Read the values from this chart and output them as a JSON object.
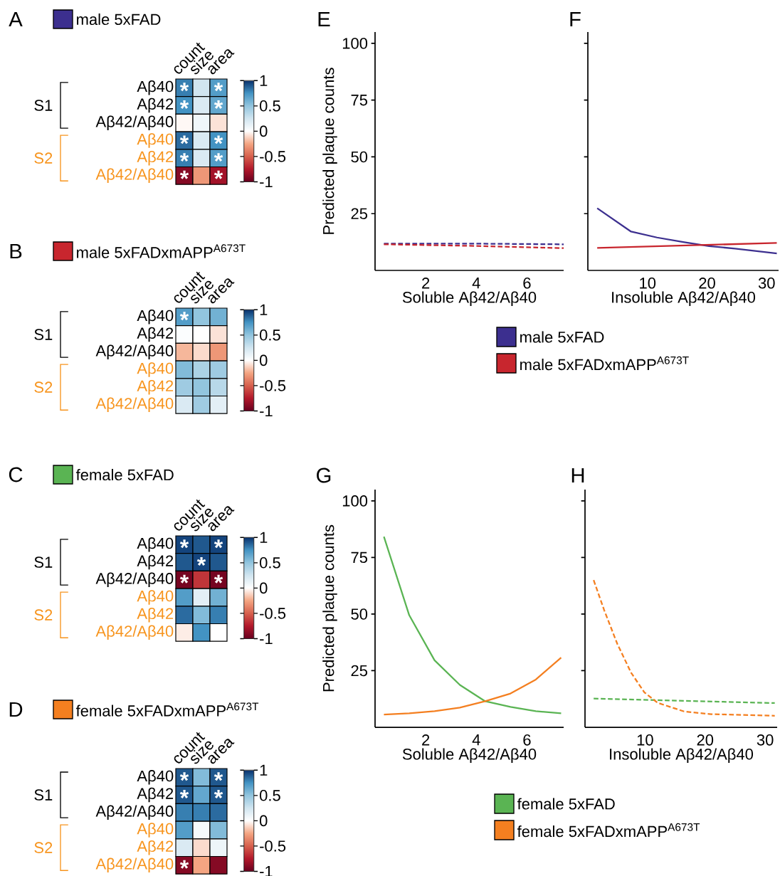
{
  "chart_data": [
    {
      "type": "heatmap",
      "title": "A",
      "subtitle": "male 5xFAD",
      "categories": [
        "count",
        "size",
        "area"
      ],
      "y_categories": [
        "Aβ40",
        "Aβ42",
        "Aβ42/Aβ40",
        "Aβ40",
        "Aβ42",
        "Aβ42/Aβ40"
      ],
      "cells": [
        [
          0.8,
          0.25,
          0.7
        ],
        [
          0.75,
          0.2,
          0.65
        ],
        [
          -0.02,
          0.08,
          -0.08
        ],
        [
          0.85,
          0.2,
          0.75
        ],
        [
          0.8,
          0.2,
          0.7
        ],
        [
          -0.9,
          -0.3,
          -0.8
        ]
      ],
      "cell_labels": [
        [
          "*",
          null,
          "*"
        ],
        [
          "*",
          null,
          "*"
        ],
        [
          null,
          null,
          null
        ],
        [
          "*",
          null,
          "*"
        ],
        [
          "*",
          null,
          "*"
        ],
        [
          "*",
          null,
          "*"
        ]
      ],
      "clim": [
        -1,
        1
      ],
      "cticks": [
        -1,
        -0.5,
        0,
        0.5,
        1
      ],
      "annotations": [
        "S1",
        "S2"
      ]
    },
    {
      "type": "heatmap",
      "title": "B",
      "subtitle": "male 5xFADxmAPP$^{A673T}$",
      "categories": [
        "count",
        "size",
        "area"
      ],
      "y_categories": [
        "Aβ40",
        "Aβ42",
        "Aβ42/Aβ40",
        "Aβ40",
        "Aβ42",
        "Aβ42/Aβ40"
      ],
      "cells": [
        [
          0.7,
          0.5,
          0.6
        ],
        [
          0.02,
          0.0,
          -0.08
        ],
        [
          -0.2,
          -0.1,
          -0.3
        ],
        [
          0.55,
          0.4,
          0.45
        ],
        [
          0.45,
          0.5,
          0.35
        ],
        [
          0.2,
          0.45,
          0.15
        ]
      ],
      "cell_labels": [
        [
          "*",
          null,
          null
        ],
        [
          null,
          null,
          null
        ],
        [
          null,
          null,
          null
        ],
        [
          null,
          null,
          null
        ],
        [
          null,
          null,
          null
        ],
        [
          null,
          null,
          null
        ]
      ],
      "clim": [
        -1,
        1
      ],
      "cticks": [
        -1,
        -0.5,
        0,
        0.5,
        1
      ],
      "annotations": [
        "S1",
        "S2"
      ]
    },
    {
      "type": "heatmap",
      "title": "C",
      "subtitle": "female 5xFAD",
      "categories": [
        "count",
        "size",
        "area"
      ],
      "y_categories": [
        "Aβ40",
        "Aβ42",
        "Aβ42/Aβ40",
        "Aβ40",
        "Aβ42",
        "Aβ42/Aβ40"
      ],
      "cells": [
        [
          0.95,
          0.9,
          0.95
        ],
        [
          0.9,
          0.95,
          0.9
        ],
        [
          -0.95,
          -0.65,
          -0.95
        ],
        [
          0.7,
          0.15,
          0.6
        ],
        [
          0.85,
          0.55,
          0.8
        ],
        [
          -0.05,
          0.75,
          0.0
        ]
      ],
      "cell_labels": [
        [
          "*",
          null,
          "*"
        ],
        [
          null,
          "*",
          null
        ],
        [
          "*",
          null,
          "*"
        ],
        [
          null,
          null,
          null
        ],
        [
          null,
          null,
          null
        ],
        [
          null,
          null,
          null
        ]
      ],
      "clim": [
        -1,
        1
      ],
      "cticks": [
        -1,
        -0.5,
        0,
        0.5,
        1
      ],
      "annotations": [
        "S1",
        "S2"
      ]
    },
    {
      "type": "heatmap",
      "title": "D",
      "subtitle": "female 5xFADxmAPP$^{A673T}$",
      "categories": [
        "count",
        "size",
        "area"
      ],
      "y_categories": [
        "Aβ40",
        "Aβ42",
        "Aβ42/Aβ40",
        "Aβ40",
        "Aβ42",
        "Aβ42/Aβ40"
      ],
      "cells": [
        [
          0.9,
          0.55,
          0.9
        ],
        [
          0.9,
          0.65,
          0.9
        ],
        [
          0.8,
          0.8,
          0.85
        ],
        [
          0.7,
          0.05,
          0.55
        ],
        [
          0.2,
          -0.1,
          0.1
        ],
        [
          -0.9,
          -0.25,
          -0.9
        ]
      ],
      "cell_labels": [
        [
          "*",
          null,
          "*"
        ],
        [
          "*",
          null,
          "*"
        ],
        [
          null,
          null,
          null
        ],
        [
          null,
          null,
          null
        ],
        [
          null,
          null,
          null
        ],
        [
          "*",
          null,
          null
        ]
      ],
      "clim": [
        -1,
        1
      ],
      "cticks": [
        -1,
        -0.5,
        0,
        0.5,
        1
      ],
      "annotations": [
        "S1",
        "S2"
      ]
    },
    {
      "type": "line",
      "title": "E",
      "xlabel": "Soluble Aβ42/Aβ40",
      "ylabel": "Predicted plaque counts",
      "xlim": [
        0,
        7.45
      ],
      "ylim": [
        0,
        105
      ],
      "xticks": [
        2,
        4,
        6
      ],
      "yticks": [
        25,
        50,
        75,
        100
      ],
      "series": [
        {
          "color": "#3c2f8f",
          "line_style": "dashed",
          "x": [
            0.35,
            3.9,
            7.45
          ],
          "values": [
            11.8,
            11.8,
            11.5
          ]
        },
        {
          "color": "#c8262e",
          "line_style": "dashed",
          "x": [
            0.35,
            3.9,
            7.45
          ],
          "values": [
            11.5,
            10.8,
            9.8
          ]
        }
      ]
    },
    {
      "type": "line",
      "title": "F",
      "xlabel": "Insoluble Aβ42/Aβ40",
      "xlim": [
        0,
        32
      ],
      "ylim": [
        0,
        105
      ],
      "xticks": [
        10,
        20,
        30
      ],
      "yticks": [
        25,
        50,
        75,
        100
      ],
      "tick_labels": "x",
      "legend": "bottom",
      "series": [
        {
          "name": "male 5xFAD",
          "color": "#3c2f8f",
          "line_style": "solid",
          "x": [
            1.57,
            7.25,
            11.6,
            16,
            20.35,
            24.7,
            31.7
          ],
          "values": [
            27.4,
            17.1,
            14.5,
            12.5,
            10.7,
            9.6,
            7.5
          ]
        },
        {
          "name": "male 5xFADxmAPP$^{A673T}$",
          "color": "#c8262e",
          "line_style": "solid",
          "x": [
            1.57,
            31.7
          ],
          "values": [
            9.9,
            12.1
          ]
        }
      ]
    },
    {
      "type": "line",
      "title": "G",
      "xlabel": "Soluble Aβ42/Aβ40",
      "ylabel": "Predicted plaque counts",
      "xlim": [
        0,
        7.45
      ],
      "ylim": [
        0,
        105
      ],
      "xticks": [
        2,
        4,
        6
      ],
      "yticks": [
        25,
        50,
        75,
        100
      ],
      "series": [
        {
          "color": "#5ab453",
          "line_style": "solid",
          "x": [
            0.35,
            1.35,
            2.35,
            3.35,
            4.35,
            5.35,
            6.35,
            7.35
          ],
          "values": [
            84.2,
            49.5,
            29.6,
            18.7,
            11.5,
            9,
            7.1,
            6.2
          ]
        },
        {
          "color": "#f47f20",
          "line_style": "solid",
          "x": [
            0.35,
            1.35,
            2.35,
            3.35,
            4.35,
            5.35,
            6.35,
            7.35
          ],
          "values": [
            5.6,
            6.2,
            7.1,
            8.7,
            11.5,
            14.9,
            21.1,
            30.8
          ]
        }
      ]
    },
    {
      "type": "line",
      "title": "H",
      "xlabel": "Insoluble Aβ42/Aβ40",
      "xlim": [
        0,
        32
      ],
      "ylim": [
        0,
        105
      ],
      "xticks": [
        10,
        20,
        30
      ],
      "yticks": [
        25,
        50,
        75,
        100
      ],
      "tick_labels": "x",
      "legend": "bottom",
      "series": [
        {
          "name": "female 5xFAD",
          "color": "#5ab453",
          "line_style": "dashed",
          "x": [
            1.44,
            16.5,
            31.6
          ],
          "values": [
            12.7,
            11.7,
            10.7
          ]
        },
        {
          "name": "female 5xFADxmAPP$^{A673T}$",
          "color": "#f47f20",
          "line_style": "dashed",
          "x": [
            1.44,
            3.2,
            5.4,
            7.7,
            9.9,
            12.1,
            16.5,
            21,
            31.6
          ],
          "values": [
            65,
            51.7,
            36.7,
            24,
            15.4,
            10.8,
            7,
            5.8,
            5.1
          ]
        }
      ]
    }
  ]
}
